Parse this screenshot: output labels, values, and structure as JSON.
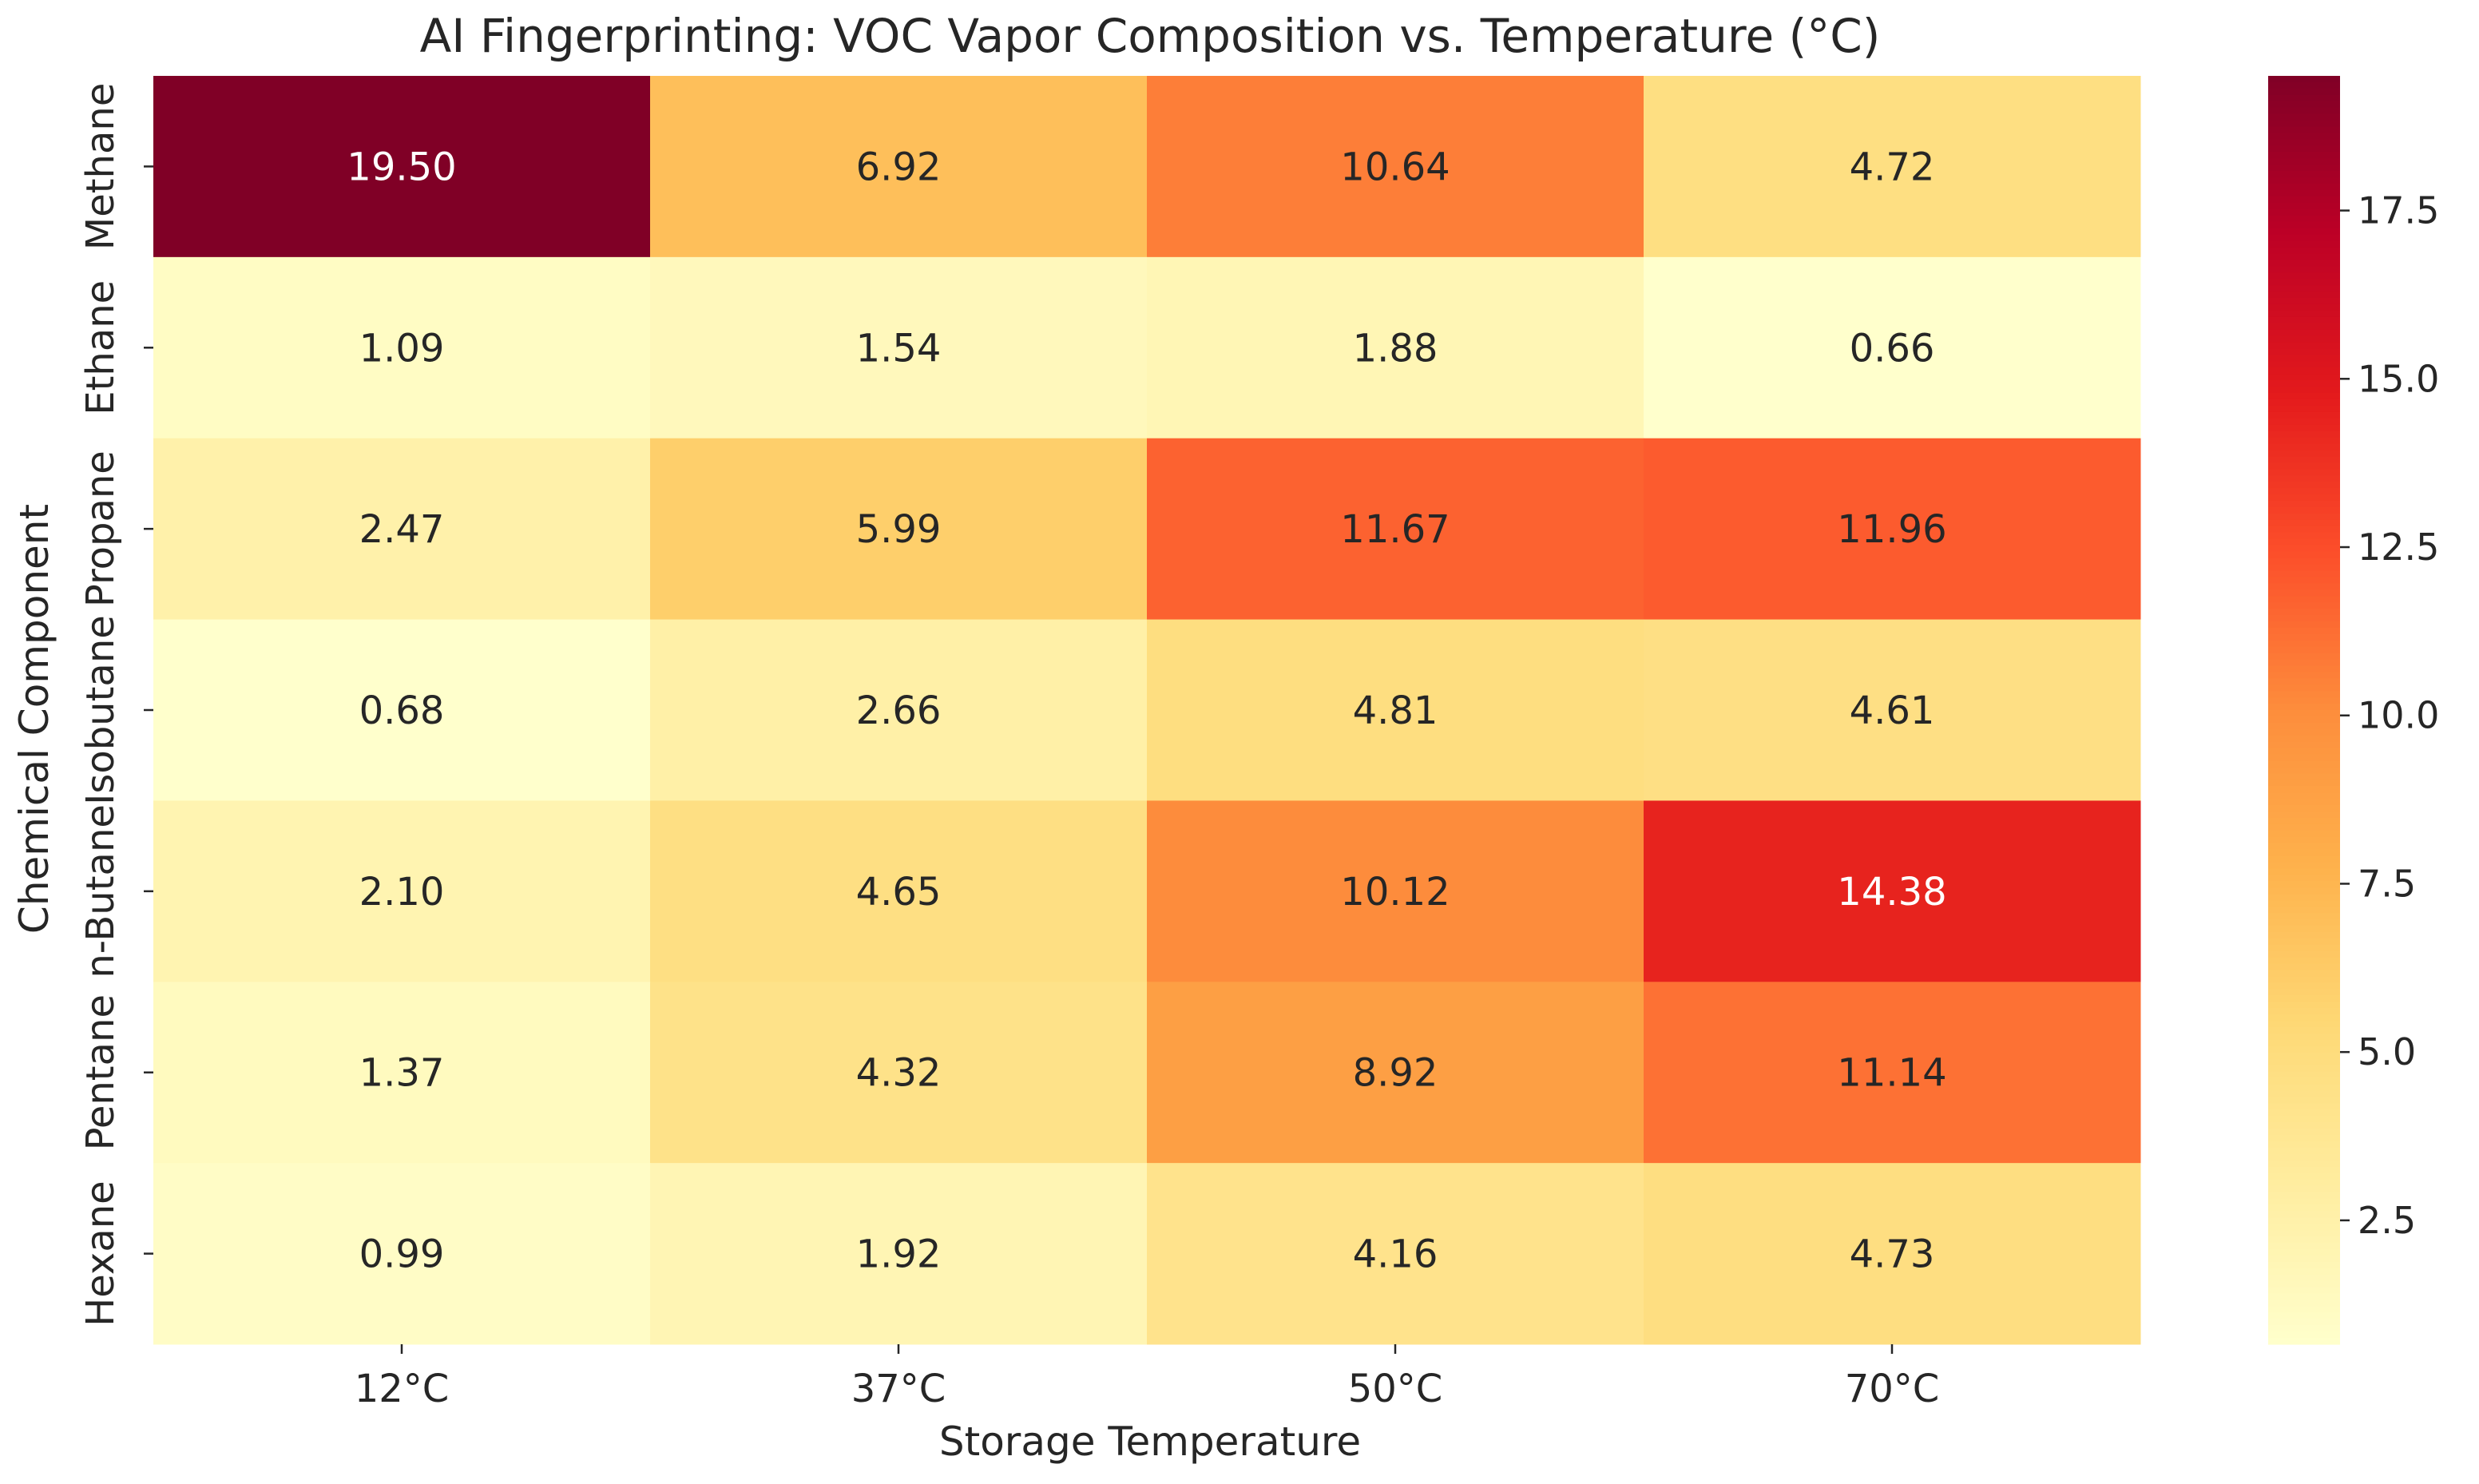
{
  "chart_data": {
    "type": "heatmap",
    "title": "AI Fingerprinting: VOC Vapor Composition vs. Temperature (°C)",
    "xlabel": "Storage Temperature",
    "ylabel": "Chemical Component",
    "x_categories": [
      "12°C",
      "37°C",
      "50°C",
      "70°C"
    ],
    "y_categories": [
      "Methane",
      "Ethane",
      "Propane",
      "Isobutane",
      "n-Butane",
      "Pentane",
      "Hexane"
    ],
    "values": [
      [
        19.5,
        6.92,
        10.64,
        4.72
      ],
      [
        1.09,
        1.54,
        1.88,
        0.66
      ],
      [
        2.47,
        5.99,
        11.67,
        11.96
      ],
      [
        0.68,
        2.66,
        4.81,
        4.61
      ],
      [
        2.1,
        4.65,
        10.12,
        14.38
      ],
      [
        1.37,
        4.32,
        8.92,
        11.14
      ],
      [
        0.99,
        1.92,
        4.16,
        4.73
      ]
    ],
    "value_format": "0.00",
    "colormap": "YlOrRd",
    "color_range": [
      0.66,
      19.5
    ],
    "colorbar_ticks": [
      "2.5",
      "5.0",
      "7.5",
      "10.0",
      "12.5",
      "15.0",
      "17.5"
    ],
    "grid": false,
    "legend": "colorbar-right"
  }
}
